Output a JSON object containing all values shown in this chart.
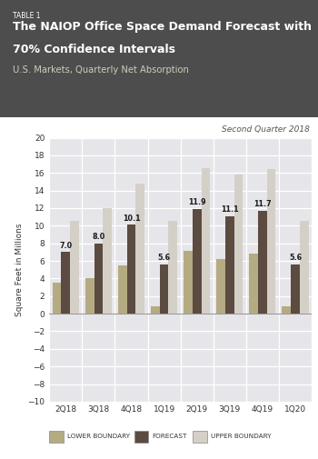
{
  "table_label": "TABLE 1",
  "title_line1": "The NAIOP Office Space Demand Forecast with",
  "title_line2": "70% Confidence Intervals",
  "subtitle": "U.S. Markets, Quarterly Net Absorption",
  "quarter_label": "Second Quarter 2018",
  "ylabel": "Square Feet in Millions",
  "xtick_labels": [
    "2Q18",
    "3Q18",
    "4Q18",
    "1Q19",
    "2Q19",
    "3Q19",
    "4Q19",
    "1Q20"
  ],
  "lower_boundary": [
    3.5,
    4.0,
    5.5,
    0.8,
    7.1,
    6.2,
    6.8,
    0.8
  ],
  "forecast": [
    7.0,
    8.0,
    10.1,
    5.6,
    11.9,
    11.1,
    11.7,
    5.6
  ],
  "upper_boundary": [
    10.5,
    12.0,
    14.8,
    10.5,
    16.5,
    15.8,
    16.4,
    10.5
  ],
  "forecast_labels": [
    "7.0",
    "8.0",
    "10.1",
    "5.6",
    "11.9",
    "11.1",
    "11.7",
    "5.6"
  ],
  "color_lower": "#b5ab82",
  "color_forecast": "#5c4b40",
  "color_upper": "#d4d0c8",
  "color_header_bg": "#4d4d4d",
  "color_plot_bg": "#e6e6ea",
  "color_grid": "#ffffff",
  "ylim": [
    -10,
    20
  ],
  "yticks": [
    -10,
    -8,
    -6,
    -4,
    -2,
    0,
    2,
    4,
    6,
    8,
    10,
    12,
    14,
    16,
    18,
    20
  ],
  "bar_width": 0.27
}
